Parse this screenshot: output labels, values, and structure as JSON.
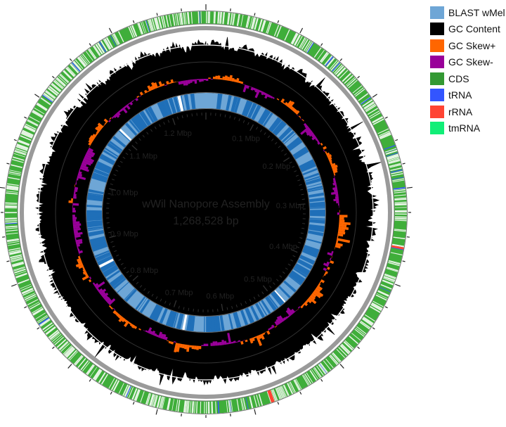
{
  "map": {
    "title": "wWil Nanopore Assembly",
    "length_label": "1,268,528 bp",
    "length_bp": 1268528,
    "tick_labels": [
      {
        "label": "0.1 Mbp",
        "bp": 100000
      },
      {
        "label": "0.2 Mbp",
        "bp": 200000
      },
      {
        "label": "0.3 Mbp",
        "bp": 300000
      },
      {
        "label": "0.4 Mbp",
        "bp": 400000
      },
      {
        "label": "0.5 Mbp",
        "bp": 500000
      },
      {
        "label": "0.6 Mbp",
        "bp": 600000
      },
      {
        "label": "0.7 Mbp",
        "bp": 700000
      },
      {
        "label": "0.8 Mbp",
        "bp": 800000
      },
      {
        "label": "0.9 Mbp",
        "bp": 900000
      },
      {
        "label": "1.0 Mbp",
        "bp": 1000000
      },
      {
        "label": "1.1 Mbp",
        "bp": 1100000
      },
      {
        "label": "1.2 Mbp",
        "bp": 1200000
      }
    ]
  },
  "legend": [
    {
      "label": "BLAST wMel",
      "color": "#6ea6d6"
    },
    {
      "label": "GC Content",
      "color": "#000000"
    },
    {
      "label": "GC Skew+",
      "color": "#ff6600"
    },
    {
      "label": "GC Skew-",
      "color": "#990099"
    },
    {
      "label": "CDS",
      "color": "#339933"
    },
    {
      "label": "tRNA",
      "color": "#3355ff"
    },
    {
      "label": "rRNA",
      "color": "#ff4433"
    },
    {
      "label": "tmRNA",
      "color": "#11ee77"
    }
  ]
}
